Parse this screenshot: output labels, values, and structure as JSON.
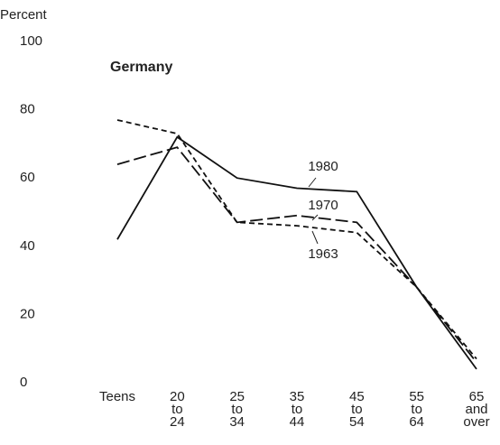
{
  "chart_data": {
    "type": "line",
    "title": "Germany",
    "y_label": "Percent",
    "categories": [
      "Teens",
      "20 to 24",
      "25 to 34",
      "35 to 44",
      "45 to 54",
      "55 to 64",
      "65 and over"
    ],
    "series": [
      {
        "name": "1980",
        "color": "#111111",
        "line_style": "solid",
        "values": [
          42,
          72,
          60,
          57,
          56,
          28,
          4
        ]
      },
      {
        "name": "1970",
        "color": "#111111",
        "line_style": "long-dash",
        "values": [
          64,
          69,
          47,
          49,
          47,
          28,
          6
        ]
      },
      {
        "name": "1963",
        "color": "#111111",
        "line_style": "short-dash",
        "values": [
          77,
          73,
          47,
          46,
          44,
          28,
          7
        ]
      }
    ],
    "ylim": [
      0,
      100
    ],
    "yticks": [
      0,
      20,
      40,
      60,
      80,
      100
    ],
    "grid": false
  }
}
